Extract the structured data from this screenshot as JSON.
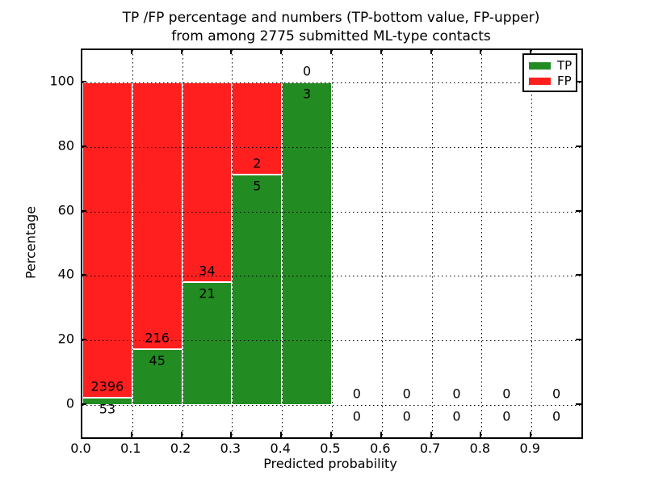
{
  "title": {
    "line1": "TP /FP percentage and numbers (TP-bottom value, FP-upper)",
    "line2": "from among 2775 submitted ML-type contacts"
  },
  "axes": {
    "x_label": "Predicted probability",
    "y_label": "Percentage",
    "x_tick_labels": [
      "0.0",
      "0.1",
      "0.2",
      "0.3",
      "0.4",
      "0.5",
      "0.6",
      "0.7",
      "0.8",
      "0.9"
    ],
    "y_tick_labels": [
      "0",
      "20",
      "40",
      "60",
      "80",
      "100"
    ]
  },
  "legend": {
    "items": [
      {
        "label": "TP",
        "color": "#228b22"
      },
      {
        "label": "FP",
        "color": "#ff1f1f"
      }
    ]
  },
  "colors": {
    "tp": "#228b22",
    "fp": "#ff1f1f",
    "grid": "#000000"
  },
  "chart_data": {
    "type": "bar",
    "stacked": true,
    "title": "TP /FP percentage and numbers (TP-bottom value, FP-upper) from among 2775 submitted ML-type contacts",
    "xlabel": "Predicted probability",
    "ylabel": "Percentage",
    "total_submitted_contacts": 2775,
    "bin_edges": [
      0.0,
      0.1,
      0.2,
      0.3,
      0.4,
      0.5,
      0.6,
      0.7,
      0.8,
      0.9,
      1.0
    ],
    "series": [
      {
        "name": "TP",
        "color": "#228b22",
        "counts": [
          53,
          45,
          21,
          5,
          3,
          0,
          0,
          0,
          0,
          0
        ],
        "percent": [
          2.16,
          17.24,
          38.18,
          71.43,
          100,
          0,
          0,
          0,
          0,
          0
        ]
      },
      {
        "name": "FP",
        "color": "#ff1f1f",
        "counts": [
          2396,
          216,
          34,
          2,
          0,
          0,
          0,
          0,
          0,
          0
        ],
        "percent": [
          97.84,
          82.76,
          61.82,
          28.57,
          0,
          0,
          0,
          0,
          0,
          0
        ]
      }
    ],
    "annotation_rule": "FP count above TP/FP boundary, TP count below",
    "xlim": [
      0,
      1.0
    ],
    "ylim": [
      -10,
      110
    ],
    "x_ticks": [
      0.0,
      0.1,
      0.2,
      0.3,
      0.4,
      0.5,
      0.6,
      0.7,
      0.8,
      0.9
    ],
    "y_ticks": [
      0,
      20,
      40,
      60,
      80,
      100
    ],
    "grid": true,
    "grid_style": "dotted",
    "legend_position": "upper right"
  }
}
